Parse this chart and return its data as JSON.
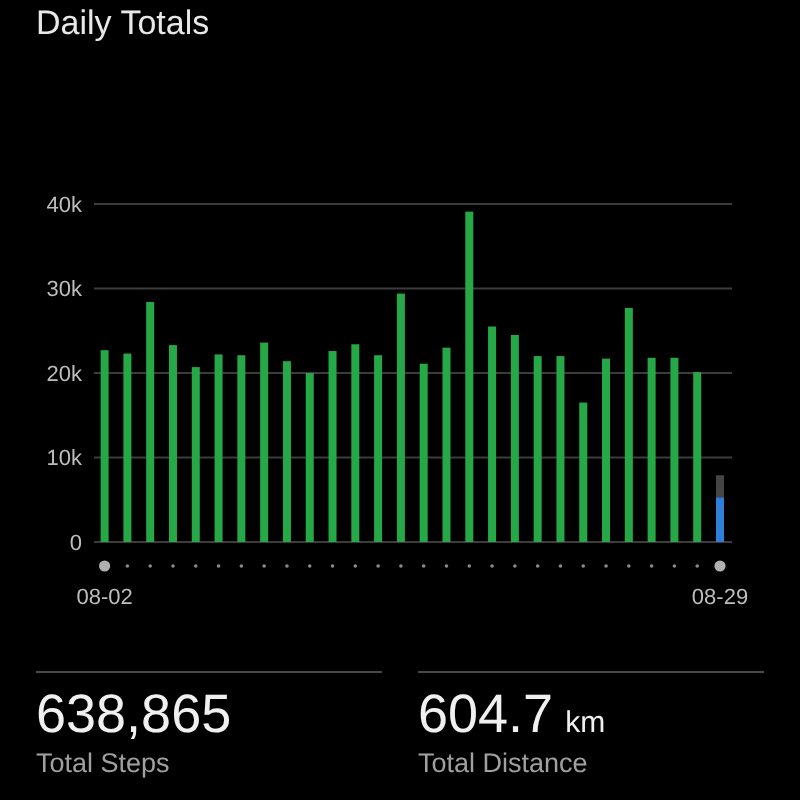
{
  "chart_data": [
    {
      "type": "bar",
      "title": "Daily Totals",
      "categories": [
        "08-02",
        null,
        null,
        null,
        null,
        null,
        null,
        null,
        null,
        null,
        null,
        null,
        null,
        null,
        null,
        null,
        null,
        null,
        null,
        null,
        null,
        null,
        null,
        null,
        null,
        null,
        null,
        "08-29"
      ],
      "series": [
        {
          "color": "#27a847",
          "values": [
            22700,
            22300,
            28400,
            23300,
            20700,
            22200,
            22100,
            23600,
            21400,
            20000,
            22600,
            23400,
            22100,
            29400,
            21100,
            23000,
            39100,
            25500,
            24500,
            22000,
            22000,
            16500,
            21700,
            27700,
            21800,
            21800,
            20100,
            null
          ]
        },
        {
          "color": "#2f7fd8",
          "values": [
            null,
            null,
            null,
            null,
            null,
            null,
            null,
            null,
            null,
            null,
            null,
            null,
            null,
            null,
            null,
            null,
            null,
            null,
            null,
            null,
            null,
            null,
            null,
            null,
            null,
            null,
            null,
            5300
          ]
        },
        {
          "color": "#454545",
          "values": [
            null,
            null,
            null,
            null,
            null,
            null,
            null,
            null,
            null,
            null,
            null,
            null,
            null,
            null,
            null,
            null,
            null,
            null,
            null,
            null,
            null,
            null,
            null,
            null,
            null,
            null,
            null,
            2600
          ]
        }
      ],
      "stacked": true,
      "ylim": [
        0,
        40000
      ],
      "yticks": [
        0,
        {
          "value": 10000,
          "label": "10k"
        },
        {
          "value": 20000,
          "label": "20k"
        },
        {
          "value": 30000,
          "label": "30k"
        },
        {
          "value": 40000,
          "label": "40k"
        }
      ],
      "grid": "y"
    },
    {
      "type": "other",
      "annotations": [
        "638,865",
        "Total Steps",
        "604.7 km",
        "Total Distance"
      ]
    }
  ]
}
